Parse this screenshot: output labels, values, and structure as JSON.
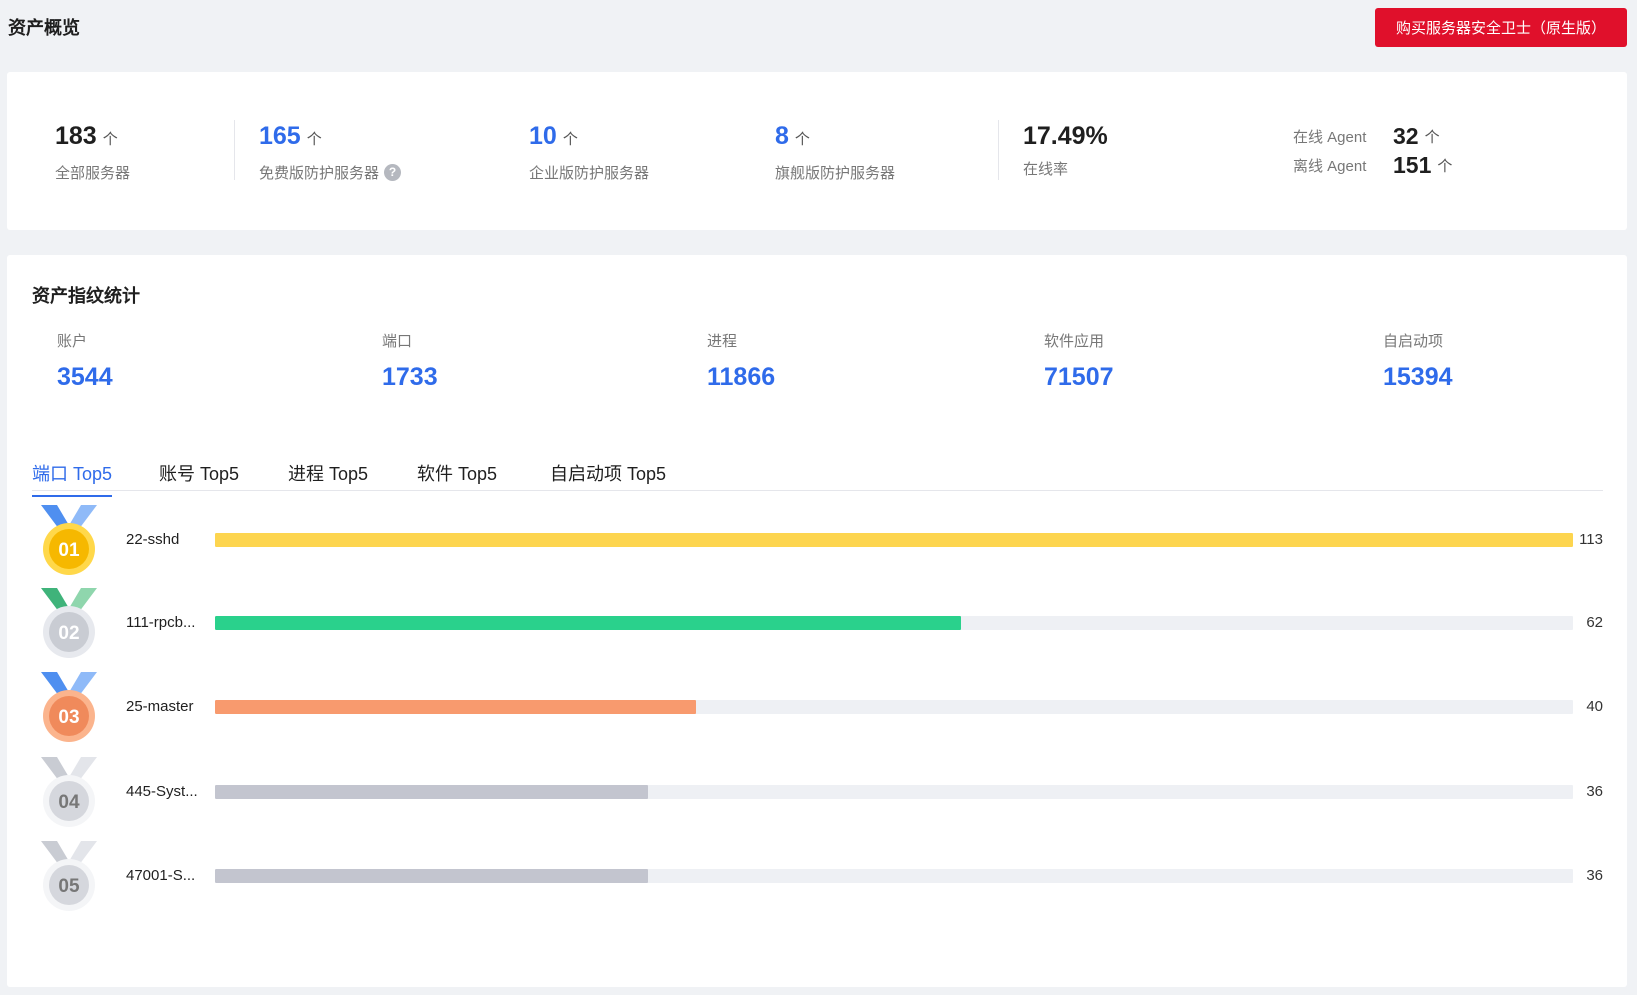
{
  "header": {
    "title": "资产概览",
    "buy_button": "购买服务器安全卫士（原生版）"
  },
  "overview": {
    "total": {
      "value": "183",
      "unit": "个",
      "label": "全部服务器"
    },
    "free": {
      "value": "165",
      "unit": "个",
      "label": "免费版防护服务器"
    },
    "enterprise": {
      "value": "10",
      "unit": "个",
      "label": "企业版防护服务器"
    },
    "flagship": {
      "value": "8",
      "unit": "个",
      "label": "旗舰版防护服务器"
    },
    "online_rate": {
      "value": "17.49%",
      "label": "在线率"
    },
    "online_agent": {
      "label": "在线 Agent",
      "value": "32",
      "unit": "个"
    },
    "offline_agent": {
      "label": "离线 Agent",
      "value": "151",
      "unit": "个"
    }
  },
  "fingerprint": {
    "title": "资产指纹统计",
    "stats": [
      {
        "label": "账户",
        "value": "3544"
      },
      {
        "label": "端口",
        "value": "1733"
      },
      {
        "label": "进程",
        "value": "11866"
      },
      {
        "label": "软件应用",
        "value": "71507"
      },
      {
        "label": "自启动项",
        "value": "15394"
      }
    ],
    "tabs": [
      "端口 Top5",
      "账号 Top5",
      "进程 Top5",
      "软件 Top5",
      "自启动项 Top5"
    ],
    "active_tab": 0,
    "ranking": [
      {
        "rank": "01",
        "name": "22-sshd",
        "count": "113",
        "ratio": 1.0,
        "color": "#fdd54f"
      },
      {
        "rank": "02",
        "name": "111-rpcb...",
        "count": "62",
        "ratio": 0.549,
        "color": "#2ad18c"
      },
      {
        "rank": "03",
        "name": "25-master",
        "count": "40",
        "ratio": 0.354,
        "color": "#f89a6e"
      },
      {
        "rank": "04",
        "name": "445-Syst...",
        "count": "36",
        "ratio": 0.319,
        "color": "#c3c5cf"
      },
      {
        "rank": "05",
        "name": "47001-S...",
        "count": "36",
        "ratio": 0.319,
        "color": "#c3c5cf"
      }
    ]
  }
}
